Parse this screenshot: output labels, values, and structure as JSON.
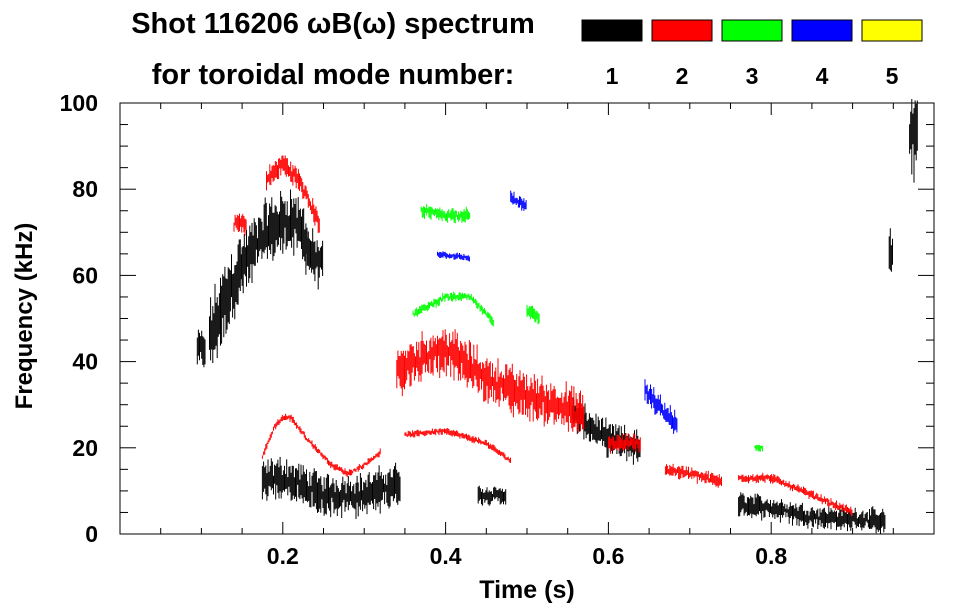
{
  "chart_data": {
    "type": "scatter",
    "title_line1": "Shot 116206 ωB(ω) spectrum",
    "title_line2": "for toroidal mode number:",
    "xlabel": "Time (s)",
    "ylabel": "Frequency (kHz)",
    "xlim": [
      0.0,
      1.0
    ],
    "ylim": [
      0,
      100
    ],
    "xticks": [
      0.2,
      0.4,
      0.6,
      0.8
    ],
    "xtick_labels": [
      "0.2",
      "0.4",
      "0.6",
      "0.8"
    ],
    "yticks": [
      0,
      20,
      40,
      60,
      80,
      100
    ],
    "ytick_labels": [
      "0",
      "20",
      "40",
      "60",
      "80",
      "100"
    ],
    "legend": [
      {
        "label": "1",
        "color": "#000000"
      },
      {
        "label": "2",
        "color": "#ff0000"
      },
      {
        "label": "3",
        "color": "#00ff00"
      },
      {
        "label": "4",
        "color": "#0000ff"
      },
      {
        "label": "5",
        "color": "#ffff00"
      }
    ],
    "series": [
      {
        "name": "n=1",
        "color": "#000000",
        "bands": [
          {
            "t0": 0.095,
            "t1": 0.105,
            "f": [
              [
                0.095,
                43
              ],
              [
                0.105,
                43
              ]
            ],
            "w": 8
          },
          {
            "t0": 0.11,
            "t1": 0.15,
            "f": [
              [
                0.11,
                45
              ],
              [
                0.13,
                55
              ],
              [
                0.15,
                62
              ]
            ],
            "w": 16
          },
          {
            "t0": 0.15,
            "t1": 0.23,
            "f": [
              [
                0.15,
                62
              ],
              [
                0.18,
                70
              ],
              [
                0.21,
                73
              ],
              [
                0.23,
                68
              ]
            ],
            "w": 14
          },
          {
            "t0": 0.23,
            "t1": 0.25,
            "f": [
              [
                0.23,
                66
              ],
              [
                0.25,
                62
              ]
            ],
            "w": 10
          },
          {
            "t0": 0.175,
            "t1": 0.345,
            "f": [
              [
                0.175,
                12
              ],
              [
                0.2,
                13
              ],
              [
                0.25,
                9
              ],
              [
                0.3,
                9
              ],
              [
                0.345,
                12
              ]
            ],
            "w": 9
          },
          {
            "t0": 0.44,
            "t1": 0.475,
            "f": [
              [
                0.44,
                9
              ],
              [
                0.475,
                9
              ]
            ],
            "w": 4
          },
          {
            "t0": 0.555,
            "t1": 0.64,
            "f": [
              [
                0.555,
                28
              ],
              [
                0.6,
                22
              ],
              [
                0.64,
                20
              ]
            ],
            "w": 7
          },
          {
            "t0": 0.76,
            "t1": 0.94,
            "f": [
              [
                0.76,
                7
              ],
              [
                0.8,
                6
              ],
              [
                0.85,
                4
              ],
              [
                0.94,
                3
              ]
            ],
            "w": 5
          },
          {
            "t0": 0.945,
            "t1": 0.95,
            "f": [
              [
                0.945,
                65
              ],
              [
                0.95,
                65
              ]
            ],
            "w": 10
          },
          {
            "t0": 0.97,
            "t1": 0.98,
            "f": [
              [
                0.97,
                90
              ],
              [
                0.98,
                95
              ]
            ],
            "w": 18
          }
        ]
      },
      {
        "name": "n=2",
        "color": "#ff0000",
        "bands": [
          {
            "t0": 0.14,
            "t1": 0.155,
            "f": [
              [
                0.14,
                72
              ],
              [
                0.155,
                72
              ]
            ],
            "w": 5
          },
          {
            "t0": 0.18,
            "t1": 0.245,
            "f": [
              [
                0.18,
                82
              ],
              [
                0.2,
                86
              ],
              [
                0.22,
                82
              ],
              [
                0.245,
                72
              ]
            ],
            "w": 5
          },
          {
            "t0": 0.175,
            "t1": 0.32,
            "f": [
              [
                0.175,
                18
              ],
              [
                0.19,
                25
              ],
              [
                0.2,
                27
              ],
              [
                0.21,
                27
              ],
              [
                0.23,
                22
              ],
              [
                0.26,
                16
              ],
              [
                0.28,
                14
              ],
              [
                0.3,
                16
              ],
              [
                0.32,
                19
              ]
            ],
            "w": 1.5
          },
          {
            "t0": 0.35,
            "t1": 0.48,
            "f": [
              [
                0.35,
                23
              ],
              [
                0.4,
                24
              ],
              [
                0.45,
                21
              ],
              [
                0.48,
                17
              ]
            ],
            "w": 1.5
          },
          {
            "t0": 0.34,
            "t1": 0.57,
            "f": [
              [
                0.34,
                38
              ],
              [
                0.36,
                40
              ],
              [
                0.4,
                43
              ],
              [
                0.45,
                36
              ],
              [
                0.5,
                32
              ],
              [
                0.55,
                29
              ],
              [
                0.57,
                27
              ]
            ],
            "w": 10
          },
          {
            "t0": 0.6,
            "t1": 0.64,
            "f": [
              [
                0.6,
                21
              ],
              [
                0.64,
                21
              ]
            ],
            "w": 4
          },
          {
            "t0": 0.67,
            "t1": 0.74,
            "f": [
              [
                0.67,
                15
              ],
              [
                0.7,
                14
              ],
              [
                0.74,
                12
              ]
            ],
            "w": 3
          },
          {
            "t0": 0.76,
            "t1": 0.9,
            "f": [
              [
                0.76,
                13
              ],
              [
                0.8,
                13
              ],
              [
                0.85,
                9
              ],
              [
                0.9,
                5
              ]
            ],
            "w": 2
          }
        ]
      },
      {
        "name": "n=3",
        "color": "#00ff00",
        "bands": [
          {
            "t0": 0.37,
            "t1": 0.43,
            "f": [
              [
                0.37,
                75
              ],
              [
                0.4,
                74
              ],
              [
                0.43,
                74
              ]
            ],
            "w": 3
          },
          {
            "t0": 0.36,
            "t1": 0.46,
            "f": [
              [
                0.36,
                51
              ],
              [
                0.38,
                53
              ],
              [
                0.4,
                55
              ],
              [
                0.43,
                55
              ],
              [
                0.46,
                49
              ]
            ],
            "w": 2
          },
          {
            "t0": 0.5,
            "t1": 0.515,
            "f": [
              [
                0.5,
                52
              ],
              [
                0.515,
                50
              ]
            ],
            "w": 3
          },
          {
            "t0": 0.78,
            "t1": 0.79,
            "f": [
              [
                0.78,
                20
              ],
              [
                0.79,
                20
              ]
            ],
            "w": 1.5
          }
        ]
      },
      {
        "name": "n=4",
        "color": "#0000ff",
        "bands": [
          {
            "t0": 0.39,
            "t1": 0.43,
            "f": [
              [
                0.39,
                65
              ],
              [
                0.43,
                64
              ]
            ],
            "w": 1.5
          },
          {
            "t0": 0.48,
            "t1": 0.5,
            "f": [
              [
                0.48,
                78
              ],
              [
                0.5,
                76
              ]
            ],
            "w": 3
          },
          {
            "t0": 0.645,
            "t1": 0.685,
            "f": [
              [
                0.645,
                33
              ],
              [
                0.665,
                29
              ],
              [
                0.685,
                25
              ]
            ],
            "w": 5
          }
        ]
      },
      {
        "name": "n=5",
        "color": "#ffff00",
        "bands": []
      }
    ]
  }
}
